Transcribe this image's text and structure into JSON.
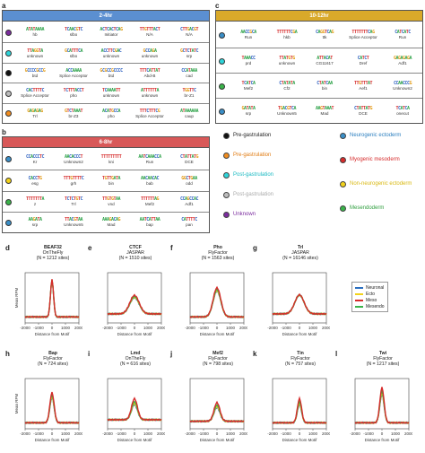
{
  "panels": {
    "a": {
      "letter": "a",
      "title": "2-4hr",
      "color": "#5b8fd1",
      "rows": [
        {
          "dot": "#7b2c9e",
          "motifs": [
            {
              "seq": "ATATAAAA",
              "name": "hb"
            },
            {
              "seq": "TCAACGTC",
              "name": "slbo"
            },
            {
              "seq": "ACTCACTCAG",
              "name": "Initiator"
            },
            {
              "seq": "TTGTTTACT",
              "name": "N/A"
            },
            {
              "seq": "CTTGACGT",
              "name": "N/A"
            }
          ]
        },
        {
          "dot": "#2ed4d9",
          "motifs": [
            {
              "seq": "TTAGGTA",
              "name": "unknown"
            },
            {
              "seq": "GCATTTCA",
              "name": "slbo"
            },
            {
              "seq": "ACCTTCGAC",
              "name": "unknown"
            },
            {
              "seq": "GCCAGA",
              "name": "unknown"
            },
            {
              "seq": "GCTCTATC",
              "name": "srp"
            }
          ]
        },
        {
          "dot": "#111111",
          "motifs": [
            {
              "seq": "GCCCCGCCG",
              "name": "btd"
            },
            {
              "seq": "ACCAAAA",
              "name": "Splice Acceptor"
            },
            {
              "seq": "GCGCCGCCCC",
              "name": "btd"
            },
            {
              "seq": "TTTCATTAT",
              "name": "Abd-B"
            },
            {
              "seq": "CCATAAA",
              "name": "cad"
            }
          ]
        },
        {
          "dot": "#bdbdbd",
          "motifs": [
            {
              "seq": "CACTTTTC",
              "name": "Splice Acceptor"
            },
            {
              "seq": "TCTTTACCT",
              "name": "pho"
            },
            {
              "seq": "TCAAAATT",
              "name": "unknown"
            },
            {
              "seq": "ATTTTTTA",
              "name": "unknown"
            },
            {
              "seq": "TGGTTC",
              "name": "br-Z1"
            }
          ]
        },
        {
          "dot": "#f08c1f",
          "motifs": [
            {
              "seq": "GAGAGAG",
              "name": "Trl"
            },
            {
              "seq": "GTCTAAAT",
              "name": "br-Z3"
            },
            {
              "seq": "ACATGCCA",
              "name": "pho"
            },
            {
              "seq": "TTTCTTTCG",
              "name": "Splice Acceptor"
            },
            {
              "seq": "ATAAAAAA",
              "name": "caup"
            }
          ]
        }
      ]
    },
    "b": {
      "letter": "b",
      "title": "6-8hr",
      "color": "#d85858",
      "rows": [
        {
          "dot": "#3a8fc8",
          "motifs": [
            {
              "seq": "CCACCCTC",
              "name": "Kr"
            },
            {
              "seq": "AACACCCT",
              "name": "Unknown2"
            },
            {
              "seq": "TTTTTTTTT",
              "name": "kni"
            },
            {
              "seq": "AATCAAACCA",
              "name": "Run"
            },
            {
              "seq": "CTATTATG",
              "name": "DCE"
            }
          ]
        },
        {
          "dot": "#f2d21a",
          "motifs": [
            {
              "seq": "CACCTG",
              "name": "esg"
            },
            {
              "seq": "TTTGTTTTC",
              "name": "grh"
            },
            {
              "seq": "TGTTGATA",
              "name": "bin"
            },
            {
              "seq": "AACAACAC",
              "name": "bab"
            },
            {
              "seq": "GGCTGAA",
              "name": "odd"
            }
          ]
        },
        {
          "dot": "#3ab34a",
          "motifs": [
            {
              "seq": "TTTTTTTA",
              "name": "z"
            },
            {
              "seq": "TCTCTGTC",
              "name": "Trl"
            },
            {
              "seq": "TTGTGTAA",
              "name": "vnd"
            },
            {
              "seq": "TTTTTTAG",
              "name": "Mef2"
            },
            {
              "seq": "CCAGCCAC",
              "name": "Adf1"
            }
          ]
        },
        {
          "dot": "#3a8fc8",
          "motifs": [
            {
              "seq": "AAGATA",
              "name": "srp"
            },
            {
              "seq": "TTACGTAA",
              "name": "Unknown5"
            },
            {
              "seq": "AAAGACAG",
              "name": "Mad"
            },
            {
              "seq": "AATCATTAA",
              "name": "bap"
            },
            {
              "seq": "CATTTTC",
              "name": "pan"
            }
          ]
        }
      ]
    },
    "c": {
      "letter": "c",
      "title": "10-12hr",
      "color": "#d9a92a",
      "rows": [
        {
          "dot": "#3a8fc8",
          "motifs": [
            {
              "seq": "AACCGCA",
              "name": "Run"
            },
            {
              "seq": "TTTTTTCGA",
              "name": "hkb"
            },
            {
              "seq": "CAGGTCAG",
              "name": "ttk"
            },
            {
              "seq": "TTTTTTTCAG",
              "name": "Splice Acceptor"
            },
            {
              "seq": "CATCATC",
              "name": "Run"
            }
          ]
        },
        {
          "dot": "#2ed4d9",
          "motifs": [
            {
              "seq": "TAAACC",
              "name": "prd"
            },
            {
              "seq": "TTATGTG",
              "name": "unknown"
            },
            {
              "seq": "ATTACAT",
              "name": "CG11617"
            },
            {
              "seq": "CATCT",
              "name": "Dref"
            },
            {
              "seq": "GAGAGAGA",
              "name": "Adf1"
            }
          ]
        },
        {
          "dot": "#3ab34a",
          "motifs": [
            {
              "seq": "TCATCA",
              "name": "Mef2"
            },
            {
              "seq": "CTATATA",
              "name": "Cf2"
            },
            {
              "seq": "CTATCAA",
              "name": "bin"
            },
            {
              "seq": "TTGTTTAT",
              "name": "Aef1"
            },
            {
              "seq": "CCAACCCG",
              "name": "Unknown2"
            }
          ]
        },
        {
          "dot": "#3a8fc8",
          "motifs": [
            {
              "seq": "GATATA",
              "name": "srp"
            },
            {
              "seq": "TGACGTCA",
              "name": "Unknown5"
            },
            {
              "seq": "AAGTAAAT",
              "name": "Mad"
            },
            {
              "seq": "CTATTATG",
              "name": "DCE"
            },
            {
              "seq": "TCATCA",
              "name": "onecut"
            }
          ]
        }
      ]
    }
  },
  "legend": {
    "left": [
      {
        "label": "Pre-gastrulation",
        "color": "#111111",
        "text_color": "#222222"
      },
      {
        "label": "Pre-gastrulation",
        "color": "#f08c1f",
        "text_color": "#e07a10"
      },
      {
        "label": "Post-gastrulation",
        "color": "#2ed4d9",
        "text_color": "#19b9c2"
      },
      {
        "label": "Post-gastrulation",
        "color": "#bdbdbd",
        "text_color": "#aaaaaa"
      },
      {
        "label": "Unknown",
        "color": "#7b2c9e",
        "text_color": "#7b2c9e"
      }
    ],
    "right": [
      {
        "label": "Neurogenic ectoderm",
        "color": "#3a8fc8",
        "text_color": "#2b7fbf"
      },
      {
        "label": "Myogenic mesoderm",
        "color": "#d62b2b",
        "text_color": "#d62b2b"
      },
      {
        "label": "Non-neurogenic ectoderm",
        "color": "#f2d21a",
        "text_color": "#d8b810"
      },
      {
        "label": "Mesendoderm",
        "color": "#3ab34a",
        "text_color": "#2f9e3e"
      }
    ]
  },
  "profiles": {
    "x_ticks": [
      -2000,
      -1000,
      0,
      1000,
      2000
    ],
    "xlabel": "Distance from Motif",
    "ylabel": "Mean RPM",
    "series_legend": [
      {
        "name": "Neuronal",
        "color": "#2b6fc0"
      },
      {
        "name": "Ecto",
        "color": "#f2d21a"
      },
      {
        "name": "Meso",
        "color": "#d62b2b"
      },
      {
        "name": "Mesendo",
        "color": "#3ab34a"
      }
    ],
    "plots": [
      {
        "letter": "d",
        "tf": "BEAF32",
        "source": "OnTheFly",
        "n": "(N = 1212 sites)",
        "peak": 0.86,
        "width": 0.18,
        "base": 0.12,
        "spread": 0.02
      },
      {
        "letter": "e",
        "tf": "CTCF",
        "source": "JASPAR",
        "n": "(N = 1510 sites)",
        "peak": 0.55,
        "width": 0.55,
        "base": 0.18,
        "spread": 0.05
      },
      {
        "letter": "f",
        "tf": "Pho",
        "source": "FlyFactor",
        "n": "(N = 1563 sites)",
        "peak": 0.7,
        "width": 0.45,
        "base": 0.12,
        "spread": 0.07
      },
      {
        "letter": "g",
        "tf": "Trl",
        "source": "JASPAR",
        "n": "(N = 16146 sites)",
        "peak": 0.56,
        "width": 0.55,
        "base": 0.18,
        "spread": 0.01
      },
      {
        "letter": "h",
        "tf": "Bap",
        "source": "FlyFactor",
        "n": "(N = 724 sites)",
        "peak": 0.72,
        "width": 0.25,
        "base": 0.12,
        "spread": 0.1
      },
      {
        "letter": "i",
        "tf": "Lmd",
        "source": "OnTheFly",
        "n": "(N = 616 sites)",
        "peak": 0.6,
        "width": 0.35,
        "base": 0.18,
        "spread": 0.12
      },
      {
        "letter": "j",
        "tf": "Mef2",
        "source": "FlyFactor",
        "n": "(N = 798 sites)",
        "peak": 0.52,
        "width": 0.35,
        "base": 0.15,
        "spread": 0.1
      },
      {
        "letter": "k",
        "tf": "Tin",
        "source": "FlyFactor",
        "n": "(N = 757 sites)",
        "peak": 0.6,
        "width": 0.25,
        "base": 0.12,
        "spread": 0.12
      },
      {
        "letter": "l",
        "tf": "Twi",
        "source": "FlyFactor",
        "n": "(N = 1217 sites)",
        "peak": 0.82,
        "width": 0.25,
        "base": 0.12,
        "spread": 0.14
      }
    ]
  }
}
